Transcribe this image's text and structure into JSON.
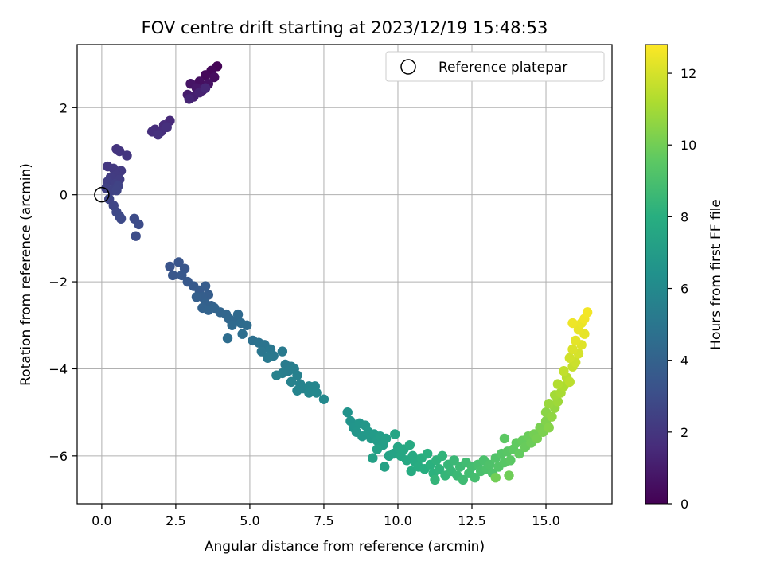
{
  "chart_data": {
    "type": "scatter",
    "title": "FOV centre drift starting at 2023/12/19 15:48:53",
    "xlabel": "Angular distance from reference (arcmin)",
    "ylabel": "Rotation from reference (arcmin)",
    "xlim": [
      -0.83,
      17.23
    ],
    "ylim": [
      -7.1,
      3.45
    ],
    "xticks": [
      "0.0",
      "2.5",
      "5.0",
      "7.5",
      "10.0",
      "12.5",
      "15.0"
    ],
    "xtick_values": [
      0,
      2.5,
      5,
      7.5,
      10,
      12.5,
      15
    ],
    "yticks": [
      "−6",
      "−4",
      "−2",
      "0",
      "2"
    ],
    "ytick_values": [
      -6,
      -4,
      -2,
      0,
      2
    ],
    "grid": true,
    "legend": {
      "placement": "upper right",
      "entries": [
        "Reference platepar"
      ]
    },
    "reference_point": {
      "x": 0,
      "y": 0
    },
    "colorbar": {
      "label": "Hours from first FF file",
      "colormap": "viridis",
      "range": [
        0,
        12.8
      ],
      "ticks": [
        "0",
        "2",
        "4",
        "6",
        "8",
        "10",
        "12"
      ],
      "tick_values": [
        0,
        2,
        4,
        6,
        8,
        10,
        12
      ]
    },
    "points": [
      [
        3.9,
        2.95,
        0.1
      ],
      [
        3.7,
        2.85,
        0.2
      ],
      [
        3.5,
        2.75,
        0.3
      ],
      [
        3.8,
        2.7,
        0.4
      ],
      [
        3.3,
        2.6,
        0.5
      ],
      [
        3.6,
        2.55,
        0.6
      ],
      [
        3.0,
        2.55,
        0.7
      ],
      [
        3.2,
        2.45,
        0.8
      ],
      [
        3.4,
        2.4,
        0.9
      ],
      [
        2.9,
        2.3,
        1.0
      ],
      [
        3.1,
        2.25,
        1.1
      ],
      [
        3.3,
        2.35,
        1.2
      ],
      [
        2.95,
        2.2,
        1.3
      ],
      [
        3.5,
        2.45,
        1.4
      ],
      [
        2.3,
        1.7,
        1.5
      ],
      [
        2.1,
        1.6,
        1.55
      ],
      [
        1.8,
        1.5,
        1.6
      ],
      [
        2.0,
        1.45,
        1.65
      ],
      [
        1.7,
        1.45,
        1.7
      ],
      [
        2.2,
        1.55,
        1.75
      ],
      [
        1.9,
        1.38,
        1.8
      ],
      [
        0.5,
        1.05,
        1.9
      ],
      [
        0.6,
        1.0,
        1.95
      ],
      [
        0.85,
        0.9,
        2.0
      ],
      [
        0.2,
        0.65,
        2.05
      ],
      [
        0.4,
        0.6,
        2.1
      ],
      [
        0.65,
        0.55,
        2.15
      ],
      [
        0.5,
        0.45,
        2.2
      ],
      [
        0.3,
        0.4,
        2.25
      ],
      [
        0.6,
        0.35,
        2.3
      ],
      [
        0.2,
        0.3,
        2.35
      ],
      [
        0.45,
        0.25,
        2.4
      ],
      [
        0.15,
        0.15,
        2.45
      ],
      [
        0.35,
        0.1,
        2.5
      ],
      [
        0.55,
        0.2,
        2.55
      ],
      [
        0.5,
        0.1,
        2.6
      ],
      [
        0.25,
        -0.1,
        2.65
      ],
      [
        0.4,
        -0.25,
        2.7
      ],
      [
        0.5,
        -0.4,
        2.75
      ],
      [
        0.6,
        -0.5,
        2.8
      ],
      [
        0.65,
        -0.55,
        2.85
      ],
      [
        1.1,
        -0.55,
        2.9
      ],
      [
        1.25,
        -0.68,
        2.95
      ],
      [
        1.15,
        -0.95,
        3.0
      ],
      [
        2.3,
        -1.65,
        3.3
      ],
      [
        2.6,
        -1.55,
        3.35
      ],
      [
        2.8,
        -1.7,
        3.4
      ],
      [
        2.4,
        -1.85,
        3.45
      ],
      [
        2.7,
        -1.85,
        3.5
      ],
      [
        2.9,
        -2.0,
        3.55
      ],
      [
        3.1,
        -2.1,
        3.6
      ],
      [
        3.3,
        -2.2,
        3.65
      ],
      [
        3.5,
        -2.1,
        3.7
      ],
      [
        3.6,
        -2.3,
        3.75
      ],
      [
        3.4,
        -2.35,
        3.8
      ],
      [
        3.2,
        -2.35,
        3.85
      ],
      [
        3.5,
        -2.5,
        3.9
      ],
      [
        3.7,
        -2.55,
        3.95
      ],
      [
        3.4,
        -2.6,
        4.0
      ],
      [
        3.6,
        -2.65,
        4.05
      ],
      [
        3.8,
        -2.6,
        4.1
      ],
      [
        4.0,
        -2.7,
        4.15
      ],
      [
        4.2,
        -2.75,
        4.2
      ],
      [
        4.3,
        -2.85,
        4.25
      ],
      [
        4.5,
        -2.9,
        4.3
      ],
      [
        4.6,
        -2.75,
        4.35
      ],
      [
        4.4,
        -3.0,
        4.4
      ],
      [
        4.7,
        -2.95,
        4.45
      ],
      [
        4.9,
        -3.0,
        4.5
      ],
      [
        4.25,
        -3.3,
        4.55
      ],
      [
        4.75,
        -3.2,
        4.6
      ],
      [
        5.1,
        -3.35,
        4.7
      ],
      [
        5.3,
        -3.4,
        4.8
      ],
      [
        5.5,
        -3.45,
        4.9
      ],
      [
        5.4,
        -3.6,
        5.0
      ],
      [
        5.7,
        -3.55,
        5.05
      ],
      [
        5.8,
        -3.7,
        5.1
      ],
      [
        5.6,
        -3.75,
        5.15
      ],
      [
        6.1,
        -3.6,
        5.2
      ],
      [
        6.2,
        -3.9,
        5.25
      ],
      [
        6.4,
        -3.95,
        5.3
      ],
      [
        6.3,
        -4.05,
        5.35
      ],
      [
        6.1,
        -4.1,
        5.4
      ],
      [
        6.5,
        -4.0,
        5.45
      ],
      [
        6.6,
        -4.15,
        5.5
      ],
      [
        5.9,
        -4.15,
        5.55
      ],
      [
        6.4,
        -4.3,
        5.6
      ],
      [
        6.7,
        -4.35,
        5.65
      ],
      [
        6.8,
        -4.45,
        5.7
      ],
      [
        6.6,
        -4.5,
        5.75
      ],
      [
        7.0,
        -4.4,
        5.8
      ],
      [
        7.2,
        -4.4,
        5.85
      ],
      [
        7.0,
        -4.55,
        5.9
      ],
      [
        7.25,
        -4.55,
        5.95
      ],
      [
        7.5,
        -4.7,
        6.0
      ],
      [
        8.3,
        -5.0,
        6.5
      ],
      [
        8.4,
        -5.2,
        6.55
      ],
      [
        8.5,
        -5.35,
        6.6
      ],
      [
        8.7,
        -5.25,
        6.65
      ],
      [
        8.6,
        -5.45,
        6.7
      ],
      [
        8.9,
        -5.3,
        6.75
      ],
      [
        8.8,
        -5.55,
        6.8
      ],
      [
        9.0,
        -5.45,
        6.85
      ],
      [
        9.1,
        -5.6,
        6.9
      ],
      [
        9.2,
        -5.5,
        6.95
      ],
      [
        9.3,
        -5.65,
        7.0
      ],
      [
        9.4,
        -5.55,
        7.05
      ],
      [
        9.5,
        -5.75,
        7.1
      ],
      [
        9.6,
        -5.6,
        7.15
      ],
      [
        9.3,
        -5.85,
        7.2
      ],
      [
        9.15,
        -6.05,
        7.25
      ],
      [
        9.55,
        -6.25,
        7.3
      ],
      [
        9.7,
        -6.0,
        7.35
      ],
      [
        9.85,
        -5.95,
        7.4
      ],
      [
        9.9,
        -5.5,
        7.45
      ],
      [
        10.0,
        -5.8,
        7.5
      ],
      [
        10.1,
        -6.0,
        7.55
      ],
      [
        10.2,
        -5.85,
        7.6
      ],
      [
        10.3,
        -6.1,
        7.65
      ],
      [
        10.4,
        -5.75,
        7.7
      ],
      [
        10.5,
        -6.0,
        7.75
      ],
      [
        10.6,
        -6.15,
        7.8
      ],
      [
        10.45,
        -6.35,
        7.85
      ],
      [
        10.7,
        -6.25,
        7.9
      ],
      [
        10.8,
        -6.05,
        7.95
      ],
      [
        10.9,
        -6.3,
        8.0
      ],
      [
        11.0,
        -5.95,
        8.05
      ],
      [
        11.1,
        -6.2,
        8.1
      ],
      [
        11.2,
        -6.4,
        8.15
      ],
      [
        11.3,
        -6.1,
        8.2
      ],
      [
        11.4,
        -6.3,
        8.25
      ],
      [
        11.5,
        -6.0,
        8.3
      ],
      [
        11.25,
        -6.55,
        8.35
      ],
      [
        11.6,
        -6.45,
        8.4
      ],
      [
        11.7,
        -6.2,
        8.45
      ],
      [
        11.8,
        -6.35,
        8.5
      ],
      [
        11.9,
        -6.1,
        8.55
      ],
      [
        12.0,
        -6.45,
        8.6
      ],
      [
        12.1,
        -6.25,
        8.65
      ],
      [
        12.2,
        -6.55,
        8.7
      ],
      [
        12.3,
        -6.15,
        8.75
      ],
      [
        12.4,
        -6.4,
        8.8
      ],
      [
        12.5,
        -6.25,
        8.85
      ],
      [
        12.6,
        -6.5,
        8.9
      ],
      [
        12.7,
        -6.2,
        8.95
      ],
      [
        12.8,
        -6.35,
        9.0
      ],
      [
        12.9,
        -6.1,
        9.05
      ],
      [
        13.0,
        -6.3,
        9.1
      ],
      [
        13.1,
        -6.2,
        9.15
      ],
      [
        13.2,
        -6.4,
        9.2
      ],
      [
        13.3,
        -6.05,
        9.25
      ],
      [
        13.4,
        -6.25,
        9.3
      ],
      [
        13.5,
        -5.95,
        9.35
      ],
      [
        13.6,
        -6.15,
        9.4
      ],
      [
        13.7,
        -5.9,
        9.45
      ],
      [
        13.8,
        -6.1,
        9.5
      ],
      [
        13.6,
        -5.6,
        9.55
      ],
      [
        13.9,
        -5.85,
        9.6
      ],
      [
        14.0,
        -5.7,
        9.65
      ],
      [
        14.1,
        -5.95,
        9.7
      ],
      [
        14.2,
        -5.65,
        9.75
      ],
      [
        14.3,
        -5.8,
        9.8
      ],
      [
        14.4,
        -5.55,
        9.85
      ],
      [
        14.5,
        -5.7,
        9.9
      ],
      [
        13.75,
        -6.45,
        9.95
      ],
      [
        13.3,
        -6.5,
        10.0
      ],
      [
        14.6,
        -5.5,
        10.05
      ],
      [
        14.7,
        -5.6,
        10.1
      ],
      [
        14.8,
        -5.35,
        10.15
      ],
      [
        14.9,
        -5.45,
        10.2
      ],
      [
        15.0,
        -5.2,
        10.3
      ],
      [
        15.1,
        -5.35,
        10.4
      ],
      [
        15.0,
        -5.0,
        10.5
      ],
      [
        15.2,
        -5.1,
        10.6
      ],
      [
        15.3,
        -4.9,
        10.7
      ],
      [
        15.1,
        -4.8,
        10.8
      ],
      [
        15.4,
        -4.75,
        10.9
      ],
      [
        15.3,
        -4.6,
        11.0
      ],
      [
        15.5,
        -4.55,
        11.1
      ],
      [
        15.6,
        -4.4,
        11.2
      ],
      [
        15.4,
        -4.35,
        11.3
      ],
      [
        15.7,
        -4.2,
        11.4
      ],
      [
        15.8,
        -4.3,
        11.5
      ],
      [
        15.6,
        -4.05,
        11.6
      ],
      [
        15.9,
        -3.95,
        11.7
      ],
      [
        16.0,
        -3.85,
        11.8
      ],
      [
        15.8,
        -3.75,
        11.9
      ],
      [
        16.1,
        -3.65,
        12.0
      ],
      [
        15.9,
        -3.55,
        12.1
      ],
      [
        16.2,
        -3.45,
        12.2
      ],
      [
        16.0,
        -3.35,
        12.3
      ],
      [
        16.3,
        -3.2,
        12.35
      ],
      [
        16.1,
        -3.1,
        12.4
      ],
      [
        16.2,
        -2.95,
        12.45
      ],
      [
        15.9,
        -2.95,
        12.5
      ],
      [
        16.3,
        -2.85,
        12.55
      ],
      [
        16.4,
        -2.7,
        12.6
      ]
    ]
  }
}
